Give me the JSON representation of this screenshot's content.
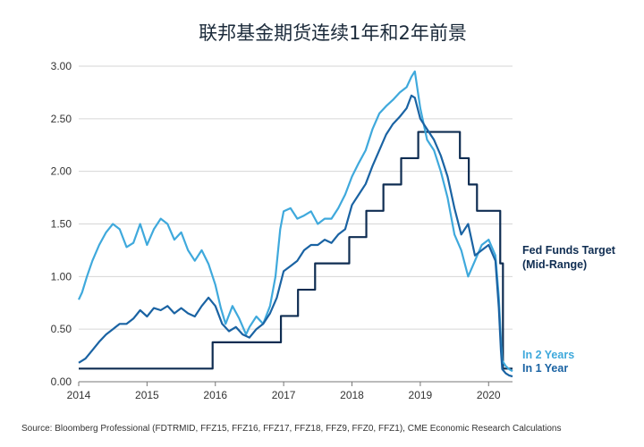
{
  "chart_data": {
    "type": "line",
    "title": "联邦基金期货连续1年和2年前景",
    "source": "Source: Bloomberg Professional (FDTRMID, FFZ15, FFZ16, FFZ17, FFZ18, FFZ9, FFZ0, FFZ1), CME Economic Research Calculations",
    "xlim": [
      2014,
      2020.35
    ],
    "ylim": [
      0,
      3
    ],
    "x_ticks": [
      "2014",
      "2015",
      "2016",
      "2017",
      "2018",
      "2019",
      "2020"
    ],
    "y_ticks": [
      "0.00",
      "0.50",
      "1.00",
      "1.50",
      "2.00",
      "2.50",
      "3.00"
    ],
    "legend_placement": "right",
    "series": [
      {
        "name": "Fed Funds Target (Mid-Range)",
        "name_lines": [
          "Fed Funds Target",
          "(Mid-Range)"
        ],
        "color": "#0f2d52",
        "step": true,
        "x": [
          2014.0,
          2015.96,
          2016.96,
          2017.21,
          2017.46,
          2017.96,
          2018.21,
          2018.46,
          2018.72,
          2018.97,
          2019.58,
          2019.71,
          2019.83,
          2020.17,
          2020.21,
          2020.35
        ],
        "y": [
          0.125,
          0.375,
          0.625,
          0.875,
          1.125,
          1.375,
          1.625,
          1.875,
          2.125,
          2.375,
          2.125,
          1.875,
          1.625,
          1.125,
          0.125,
          0.125
        ]
      },
      {
        "name": "In 2 Years",
        "color": "#3fa9dc",
        "x": [
          2014.0,
          2014.05,
          2014.12,
          2014.2,
          2014.3,
          2014.4,
          2014.5,
          2014.6,
          2014.7,
          2014.8,
          2014.9,
          2015.0,
          2015.1,
          2015.2,
          2015.3,
          2015.4,
          2015.5,
          2015.6,
          2015.7,
          2015.8,
          2015.9,
          2016.0,
          2016.08,
          2016.15,
          2016.25,
          2016.35,
          2016.45,
          2016.5,
          2016.6,
          2016.7,
          2016.8,
          2016.88,
          2016.95,
          2017.0,
          2017.1,
          2017.2,
          2017.3,
          2017.4,
          2017.5,
          2017.6,
          2017.7,
          2017.8,
          2017.9,
          2018.0,
          2018.1,
          2018.2,
          2018.3,
          2018.4,
          2018.5,
          2018.6,
          2018.7,
          2018.8,
          2018.87,
          2018.92,
          2019.0,
          2019.1,
          2019.2,
          2019.3,
          2019.4,
          2019.5,
          2019.6,
          2019.7,
          2019.8,
          2019.9,
          2020.0,
          2020.1,
          2020.15,
          2020.18,
          2020.2,
          2020.25,
          2020.3,
          2020.35
        ],
        "y": [
          0.78,
          0.85,
          1.0,
          1.15,
          1.3,
          1.42,
          1.5,
          1.45,
          1.28,
          1.32,
          1.5,
          1.3,
          1.45,
          1.55,
          1.5,
          1.35,
          1.42,
          1.25,
          1.15,
          1.25,
          1.12,
          0.92,
          0.7,
          0.55,
          0.72,
          0.6,
          0.45,
          0.52,
          0.62,
          0.55,
          0.72,
          1.0,
          1.45,
          1.62,
          1.65,
          1.55,
          1.58,
          1.62,
          1.5,
          1.55,
          1.55,
          1.65,
          1.78,
          1.95,
          2.08,
          2.2,
          2.4,
          2.55,
          2.62,
          2.68,
          2.75,
          2.8,
          2.9,
          2.95,
          2.6,
          2.3,
          2.2,
          2.0,
          1.75,
          1.4,
          1.25,
          1.0,
          1.15,
          1.3,
          1.35,
          1.2,
          0.8,
          0.4,
          0.2,
          0.15,
          0.12,
          0.1
        ]
      },
      {
        "name": "In 1 Year",
        "color": "#1a63a3",
        "x": [
          2014.0,
          2014.1,
          2014.2,
          2014.3,
          2014.4,
          2014.5,
          2014.6,
          2014.7,
          2014.8,
          2014.9,
          2015.0,
          2015.1,
          2015.2,
          2015.3,
          2015.4,
          2015.5,
          2015.6,
          2015.7,
          2015.8,
          2015.9,
          2016.0,
          2016.1,
          2016.2,
          2016.3,
          2016.4,
          2016.5,
          2016.6,
          2016.7,
          2016.8,
          2016.9,
          2017.0,
          2017.1,
          2017.2,
          2017.3,
          2017.4,
          2017.5,
          2017.6,
          2017.7,
          2017.8,
          2017.9,
          2018.0,
          2018.1,
          2018.2,
          2018.3,
          2018.4,
          2018.5,
          2018.6,
          2018.7,
          2018.8,
          2018.87,
          2018.92,
          2019.0,
          2019.1,
          2019.2,
          2019.3,
          2019.4,
          2019.5,
          2019.6,
          2019.7,
          2019.8,
          2019.9,
          2020.0,
          2020.1,
          2020.15,
          2020.18,
          2020.2,
          2020.25,
          2020.3,
          2020.35
        ],
        "y": [
          0.18,
          0.22,
          0.3,
          0.38,
          0.45,
          0.5,
          0.55,
          0.55,
          0.6,
          0.68,
          0.62,
          0.7,
          0.68,
          0.72,
          0.65,
          0.7,
          0.65,
          0.62,
          0.72,
          0.8,
          0.72,
          0.55,
          0.48,
          0.52,
          0.45,
          0.42,
          0.5,
          0.55,
          0.65,
          0.8,
          1.05,
          1.1,
          1.15,
          1.25,
          1.3,
          1.3,
          1.35,
          1.32,
          1.4,
          1.45,
          1.68,
          1.78,
          1.88,
          2.05,
          2.2,
          2.35,
          2.45,
          2.52,
          2.6,
          2.72,
          2.7,
          2.5,
          2.4,
          2.3,
          2.15,
          1.95,
          1.65,
          1.4,
          1.5,
          1.2,
          1.25,
          1.3,
          1.15,
          0.7,
          0.3,
          0.12,
          0.08,
          0.06,
          0.05
        ]
      }
    ]
  }
}
